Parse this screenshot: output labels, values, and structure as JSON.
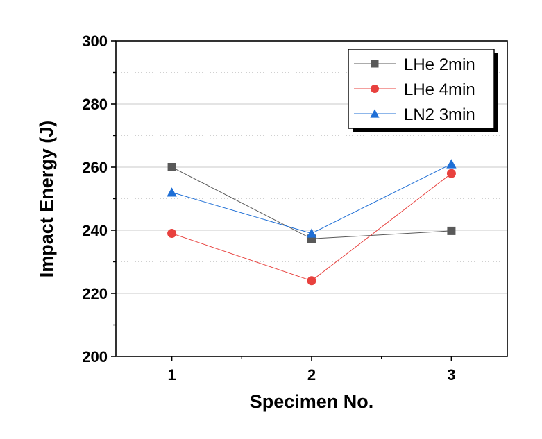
{
  "chart_data": {
    "type": "line",
    "title": "",
    "xlabel": "Specimen No.",
    "ylabel": "Impact Energy (J)",
    "x": [
      1,
      2,
      3
    ],
    "x_ticks": [
      "1",
      "2",
      "3"
    ],
    "xlim": [
      0.6,
      3.4
    ],
    "ylim": [
      200,
      300
    ],
    "y_ticks": [
      200,
      220,
      240,
      260,
      280,
      300
    ],
    "y_tick_labels": [
      "200",
      "220",
      "240",
      "260",
      "280",
      "300"
    ],
    "grid": "horizontal gridlines at major ticks, dotted at minor ticks",
    "legend_position": "top-right",
    "series": [
      {
        "name": "LHe 2min",
        "marker": "square",
        "color": "#595959",
        "values": [
          260,
          237.3,
          239.8
        ]
      },
      {
        "name": "LHe 4min",
        "marker": "circle",
        "color": "#e8413e",
        "values": [
          239,
          224,
          258
        ]
      },
      {
        "name": "LN2 3min",
        "marker": "triangle",
        "color": "#1f6fd6",
        "values": [
          252,
          239,
          261
        ]
      }
    ]
  }
}
